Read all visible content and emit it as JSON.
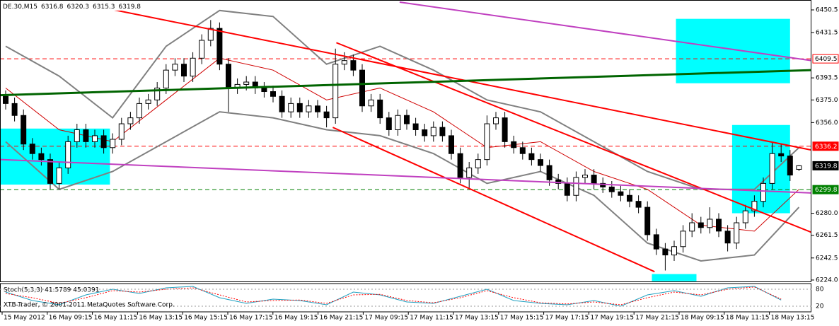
{
  "chart_data": {
    "type": "candlestick",
    "title": "DE.30,M15",
    "header_values": [
      "6316.8",
      "6320.3",
      "6315.3",
      "6319.8"
    ],
    "footer": "XTB-Trader, © 2001-2011 MetaQuotes Software Corp.",
    "categories": [
      "15 May 2012",
      "16 May 09:15",
      "16 May 11:15",
      "16 May 13:15",
      "16 May 15:15",
      "16 May 17:15",
      "16 May 19:15",
      "16 May 21:15",
      "17 May 09:15",
      "17 May 11:15",
      "17 May 13:15",
      "17 May 15:15",
      "17 May 17:15",
      "17 May 19:15",
      "17 May 21:15",
      "18 May 09:15",
      "18 May 11:15",
      "18 May 13:15"
    ],
    "open": [
      6378,
      6372,
      6362,
      6338,
      6330,
      6325,
      6305,
      6318,
      6340,
      6350,
      6340,
      6345,
      6335,
      6342,
      6355,
      6360,
      6372,
      6375,
      6385,
      6400,
      6405,
      6395,
      6410,
      6425,
      6435,
      6405,
      6385,
      6388,
      6390,
      6385,
      6382,
      6378,
      6365,
      6372,
      6365,
      6370,
      6365,
      6360,
      6405,
      6408,
      6400,
      6370,
      6375,
      6360,
      6350,
      6362,
      6355,
      6350,
      6345,
      6352,
      6345,
      6330,
      6310,
      6318,
      6325,
      6355,
      6360,
      6340,
      6335,
      6330,
      6325,
      6320,
      6308,
      6305,
      6295,
      6310,
      6312,
      6305,
      6302,
      6298,
      6295,
      6290,
      6285,
      6262,
      6250,
      6245,
      6252,
      6265,
      6272,
      6268,
      6275,
      6265,
      6255,
      6272,
      6282,
      6290,
      6305,
      6330,
      6328,
      6316.8
    ],
    "high": [
      6383,
      6377,
      6367,
      6343,
      6335,
      6330,
      6323,
      6345,
      6355,
      6355,
      6350,
      6350,
      6347,
      6360,
      6365,
      6377,
      6380,
      6390,
      6405,
      6410,
      6410,
      6415,
      6430,
      6442,
      6440,
      6410,
      6393,
      6395,
      6395,
      6390,
      6387,
      6383,
      6377,
      6377,
      6375,
      6375,
      6370,
      6418,
      6415,
      6413,
      6405,
      6380,
      6380,
      6365,
      6367,
      6367,
      6360,
      6355,
      6357,
      6357,
      6350,
      6335,
      6323,
      6330,
      6362,
      6365,
      6365,
      6345,
      6340,
      6335,
      6330,
      6325,
      6313,
      6310,
      6315,
      6317,
      6317,
      6310,
      6307,
      6303,
      6300,
      6295,
      6290,
      6267,
      6255,
      6257,
      6270,
      6280,
      6277,
      6285,
      6280,
      6270,
      6277,
      6287,
      6295,
      6310,
      6340,
      6338,
      6333,
      6320.3
    ],
    "low": [
      6367,
      6357,
      6333,
      6325,
      6320,
      6300,
      6300,
      6313,
      6335,
      6335,
      6335,
      6330,
      6330,
      6337,
      6350,
      6355,
      6367,
      6370,
      6380,
      6395,
      6390,
      6390,
      6405,
      6420,
      6400,
      6365,
      6380,
      6383,
      6380,
      6377,
      6373,
      6360,
      6360,
      6360,
      6360,
      6360,
      6352,
      6355,
      6400,
      6395,
      6365,
      6365,
      6355,
      6345,
      6345,
      6350,
      6345,
      6340,
      6340,
      6340,
      6325,
      6305,
      6300,
      6313,
      6320,
      6350,
      6335,
      6330,
      6325,
      6320,
      6315,
      6303,
      6300,
      6290,
      6290,
      6305,
      6300,
      6297,
      6293,
      6290,
      6285,
      6280,
      6257,
      6245,
      6232,
      6240,
      6247,
      6260,
      6263,
      6263,
      6260,
      6248,
      6250,
      6267,
      6277,
      6285,
      6300,
      6323,
      6307,
      6315.3
    ],
    "close": [
      6372,
      6362,
      6338,
      6330,
      6325,
      6305,
      6318,
      6340,
      6350,
      6340,
      6345,
      6335,
      6342,
      6355,
      6360,
      6372,
      6375,
      6385,
      6400,
      6405,
      6395,
      6410,
      6425,
      6435,
      6405,
      6385,
      6388,
      6390,
      6385,
      6382,
      6378,
      6365,
      6372,
      6365,
      6370,
      6365,
      6360,
      6405,
      6408,
      6400,
      6370,
      6375,
      6360,
      6350,
      6362,
      6355,
      6350,
      6345,
      6352,
      6345,
      6330,
      6310,
      6318,
      6325,
      6355,
      6360,
      6340,
      6335,
      6330,
      6325,
      6320,
      6308,
      6305,
      6295,
      6310,
      6312,
      6305,
      6302,
      6298,
      6295,
      6290,
      6285,
      6262,
      6250,
      6245,
      6252,
      6265,
      6272,
      6268,
      6275,
      6265,
      6255,
      6272,
      6282,
      6290,
      6305,
      6330,
      6328,
      6312,
      6319.8
    ],
    "bollinger": {
      "x": [
        0,
        6,
        12,
        18,
        24,
        30,
        36,
        42,
        48,
        54,
        60,
        66,
        72,
        78,
        84,
        89
      ],
      "upper": [
        6420,
        6395,
        6360,
        6420,
        6450,
        6445,
        6405,
        6420,
        6400,
        6375,
        6365,
        6340,
        6315,
        6300,
        6300,
        6335
      ],
      "middle": [
        6385,
        6350,
        6340,
        6375,
        6410,
        6400,
        6375,
        6385,
        6365,
        6335,
        6340,
        6315,
        6300,
        6270,
        6265,
        6300
      ],
      "lower": [
        6340,
        6300,
        6315,
        6340,
        6365,
        6360,
        6350,
        6345,
        6330,
        6305,
        6315,
        6295,
        6255,
        6240,
        6245,
        6285
      ]
    },
    "ylim": [
      6222.8,
      6458.8
    ],
    "yticks": [
      6450.5,
      6431.5,
      6393.5,
      {
        "value": 6375,
        "label": "6375.0"
      },
      {
        "value": 6356,
        "label": "6356.0"
      },
      {
        "value": 6280,
        "label": "6280.0"
      },
      6261.5,
      6242.5,
      {
        "value": 6224,
        "label": "6224.0"
      }
    ],
    "price_labels": [
      {
        "value": 6409.5,
        "color": "#ff0000",
        "style": "outline"
      },
      {
        "value": 6336.2,
        "color": "#ff0000",
        "style": "fill"
      },
      {
        "value": 6319.8,
        "color": "#000000",
        "style": "fill"
      },
      {
        "value": 6299.8,
        "color": "#008000",
        "style": "fill"
      }
    ],
    "hlines": [
      {
        "value": 6409.5,
        "color": "#ff0000"
      },
      {
        "value": 6336.2,
        "color": "#ff0000"
      },
      {
        "value": 6299.8,
        "color": "#008000"
      }
    ],
    "lines": [
      {
        "x": [
          10.5,
          90.4
        ],
        "y": [
          6453,
          6333
        ],
        "color": "#ff0000"
      },
      {
        "x": [
          37.1,
          90.4
        ],
        "y": [
          6423,
          6264
        ],
        "color": "#ff0000"
      },
      {
        "x": [
          36.7,
          72.8
        ],
        "y": [
          6352,
          6231
        ],
        "color": "#ff0000"
      },
      {
        "x": [
          -0.6,
          90.4
        ],
        "y": [
          6379,
          6400
        ],
        "color": "#006400"
      },
      {
        "x": [
          44.2,
          90.4
        ],
        "y": [
          6457,
          6408
        ],
        "color": "#c040c0"
      },
      {
        "x": [
          -0.6,
          90.4
        ],
        "y": [
          6325,
          6297
        ],
        "color": "#c040c0"
      }
    ],
    "zones": [
      {
        "x": [
          -0.6,
          11.7
        ],
        "y": [
          6304,
          6351
        ]
      },
      {
        "x": [
          75.2,
          88
        ],
        "y": [
          6389,
          6443
        ]
      },
      {
        "x": [
          81.5,
          88
        ],
        "y": [
          6280,
          6354
        ]
      },
      {
        "x": [
          72.5,
          77.5
        ],
        "y": [
          6223,
          6229
        ]
      }
    ],
    "stoch": {
      "title": "Stoch(5,3,3) 41.5789 45.0391",
      "ylim": [
        0,
        100
      ],
      "yticks": [
        80,
        20
      ],
      "x": [
        0,
        3,
        6,
        9,
        12,
        15,
        18,
        21,
        24,
        27,
        30,
        33,
        36,
        39,
        42,
        45,
        48,
        51,
        54,
        57,
        60,
        63,
        66,
        69,
        72,
        75,
        78,
        81,
        84,
        87
      ],
      "main": [
        70,
        40,
        25,
        60,
        80,
        65,
        85,
        90,
        50,
        30,
        45,
        40,
        25,
        70,
        60,
        35,
        30,
        55,
        80,
        40,
        30,
        25,
        40,
        20,
        60,
        75,
        55,
        85,
        90,
        41.6
      ],
      "signal": [
        65,
        50,
        30,
        50,
        75,
        70,
        80,
        85,
        60,
        35,
        40,
        42,
        30,
        60,
        62,
        40,
        32,
        50,
        75,
        50,
        32,
        28,
        35,
        25,
        50,
        70,
        60,
        80,
        88,
        45.0
      ]
    }
  }
}
